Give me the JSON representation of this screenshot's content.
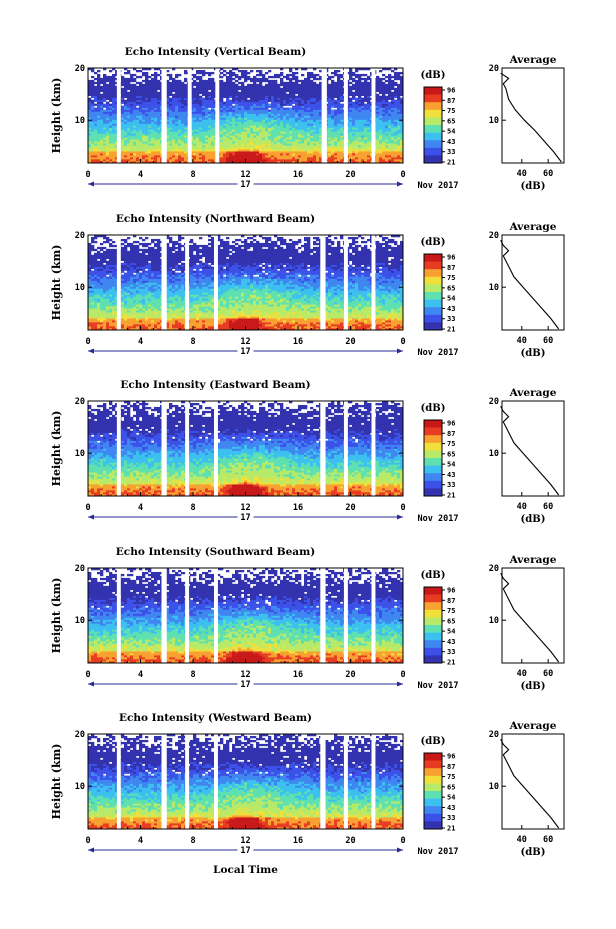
{
  "x_axis_label": "Local Time",
  "date_label": "Nov 2017",
  "day_label": "17",
  "height_label": "Height (km)",
  "db_label": "(dB)",
  "avg_title": "Average",
  "colorbar_ticks": [
    "96",
    "87",
    "75",
    "65",
    "54",
    "43",
    "33",
    "21"
  ],
  "colors": {
    "colormap": [
      "#3333b0",
      "#3a50e8",
      "#3f86f0",
      "#3cc0f0",
      "#5ee0b0",
      "#b8ea6a",
      "#f2e03a",
      "#f8a030",
      "#e83c22",
      "#c81818"
    ]
  },
  "chart_data": [
    {
      "type": "heatmap",
      "title": "Echo Intensity (Vertical Beam)",
      "xlabel": "",
      "ylabel": "Height (km)",
      "xlim": [
        0,
        24
      ],
      "ylim": [
        1.8,
        20
      ],
      "xticks": [
        "0",
        "4",
        "8",
        "12",
        "16",
        "20",
        "0"
      ],
      "yticks": [
        "20",
        "10"
      ],
      "data_gaps_local_time": [
        [
          2.2,
          2.5
        ],
        [
          5.6,
          6.0
        ],
        [
          7.6,
          7.9
        ],
        [
          9.7,
          10.0
        ],
        [
          17.8,
          18.2
        ],
        [
          19.5,
          19.8
        ],
        [
          21.6,
          21.9
        ]
      ],
      "average_profile": {
        "xticks": [
          "40",
          "60"
        ],
        "xlabel": "(dB)",
        "height_km": [
          2,
          4,
          6,
          8,
          10,
          12,
          14,
          16,
          17,
          18,
          19
        ],
        "intensity_db": [
          70,
          64,
          57,
          50,
          42,
          35,
          30,
          28,
          26,
          30,
          24
        ]
      }
    },
    {
      "type": "heatmap",
      "title": "Echo Intensity (Northward Beam)",
      "xlabel": "",
      "ylabel": "Height (km)",
      "xlim": [
        0,
        24
      ],
      "ylim": [
        1.8,
        20
      ],
      "xticks": [
        "0",
        "4",
        "8",
        "12",
        "16",
        "20",
        "0"
      ],
      "yticks": [
        "20",
        "10"
      ],
      "data_gaps_local_time": [
        [
          2.2,
          2.5
        ],
        [
          5.6,
          6.0
        ],
        [
          7.4,
          7.7
        ],
        [
          9.6,
          9.9
        ],
        [
          17.7,
          18.1
        ],
        [
          19.5,
          19.8
        ],
        [
          21.6,
          21.9
        ]
      ],
      "average_profile": {
        "xticks": [
          "40",
          "60"
        ],
        "xlabel": "(dB)",
        "height_km": [
          2,
          4,
          6,
          8,
          10,
          12,
          14,
          16,
          17,
          18,
          19
        ],
        "intensity_db": [
          68,
          62,
          55,
          48,
          41,
          34,
          30,
          26,
          30,
          26,
          24
        ]
      }
    },
    {
      "type": "heatmap",
      "title": "Echo Intensity (Eastward Beam)",
      "xlabel": "",
      "ylabel": "Height (km)",
      "xlim": [
        0,
        24
      ],
      "ylim": [
        1.8,
        20
      ],
      "xticks": [
        "0",
        "4",
        "8",
        "12",
        "16",
        "20",
        "0"
      ],
      "yticks": [
        "20",
        "10"
      ],
      "data_gaps_local_time": [
        [
          2.2,
          2.5
        ],
        [
          5.6,
          6.0
        ],
        [
          7.4,
          7.7
        ],
        [
          9.6,
          9.9
        ],
        [
          17.7,
          18.1
        ],
        [
          19.5,
          19.8
        ],
        [
          21.6,
          21.9
        ]
      ],
      "average_profile": {
        "xticks": [
          "40",
          "60"
        ],
        "xlabel": "(dB)",
        "height_km": [
          2,
          4,
          6,
          8,
          10,
          12,
          14,
          16,
          17,
          18,
          19
        ],
        "intensity_db": [
          68,
          62,
          55,
          48,
          41,
          34,
          30,
          26,
          30,
          26,
          24
        ]
      }
    },
    {
      "type": "heatmap",
      "title": "Echo Intensity (Southward Beam)",
      "xlabel": "",
      "ylabel": "Height (km)",
      "xlim": [
        0,
        24
      ],
      "ylim": [
        1.8,
        20
      ],
      "xticks": [
        "0",
        "4",
        "8",
        "12",
        "16",
        "20",
        "0"
      ],
      "yticks": [
        "20",
        "10"
      ],
      "data_gaps_local_time": [
        [
          2.2,
          2.5
        ],
        [
          5.6,
          6.0
        ],
        [
          7.4,
          7.7
        ],
        [
          9.6,
          9.9
        ],
        [
          17.7,
          18.1
        ],
        [
          19.5,
          19.8
        ],
        [
          21.6,
          21.9
        ]
      ],
      "average_profile": {
        "xticks": [
          "40",
          "60"
        ],
        "xlabel": "(dB)",
        "height_km": [
          2,
          4,
          6,
          8,
          10,
          12,
          14,
          16,
          17,
          18,
          19
        ],
        "intensity_db": [
          68,
          62,
          55,
          48,
          41,
          34,
          30,
          26,
          30,
          26,
          24
        ]
      }
    },
    {
      "type": "heatmap",
      "title": "Echo Intensity (Westward Beam)",
      "xlabel": "Local Time",
      "ylabel": "Height (km)",
      "xlim": [
        0,
        24
      ],
      "ylim": [
        1.8,
        20
      ],
      "xticks": [
        "0",
        "4",
        "8",
        "12",
        "16",
        "20",
        "0"
      ],
      "yticks": [
        "20",
        "10"
      ],
      "data_gaps_local_time": [
        [
          2.2,
          2.5
        ],
        [
          5.6,
          6.0
        ],
        [
          7.4,
          7.7
        ],
        [
          9.6,
          9.9
        ],
        [
          17.7,
          18.1
        ],
        [
          19.5,
          19.8
        ],
        [
          21.6,
          21.9
        ]
      ],
      "average_profile": {
        "xticks": [
          "40",
          "60"
        ],
        "xlabel": "(dB)",
        "height_km": [
          2,
          4,
          6,
          8,
          10,
          12,
          14,
          16,
          17,
          18,
          19
        ],
        "intensity_db": [
          68,
          62,
          55,
          48,
          41,
          34,
          30,
          26,
          30,
          26,
          24
        ]
      }
    }
  ]
}
